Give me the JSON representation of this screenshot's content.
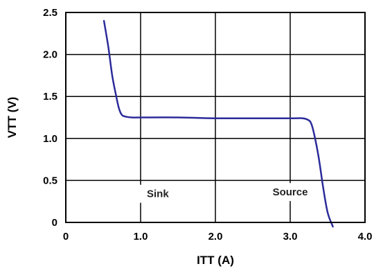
{
  "chart_data": {
    "type": "line",
    "title": "",
    "xlabel": "ITT (A)",
    "ylabel": "VTT (V)",
    "xlim": [
      0,
      4.0
    ],
    "ylim": [
      0,
      2.5
    ],
    "x_ticks": [
      0,
      1.0,
      2.0,
      3.0,
      4.0
    ],
    "x_tick_labels": [
      "0",
      "1.0",
      "2.0",
      "3.0",
      "4.0"
    ],
    "y_ticks": [
      0,
      0.5,
      1.0,
      1.5,
      2.0,
      2.5
    ],
    "y_tick_labels": [
      "0",
      "0.5",
      "1.0",
      "1.5",
      "2.0",
      "2.5"
    ],
    "grid": true,
    "legend": "none",
    "line_color": "#2b2b9a",
    "series": [
      {
        "x": [
          0.51,
          0.57,
          0.62,
          0.67,
          0.71,
          0.75,
          0.8,
          0.88,
          1.0,
          1.5,
          2.0,
          2.5,
          3.0,
          3.17,
          3.24,
          3.28,
          3.32,
          3.38,
          3.44,
          3.5,
          3.57
        ],
        "y": [
          2.4,
          2.08,
          1.75,
          1.52,
          1.36,
          1.28,
          1.26,
          1.25,
          1.25,
          1.25,
          1.24,
          1.24,
          1.24,
          1.24,
          1.22,
          1.18,
          1.05,
          0.78,
          0.42,
          0.12,
          -0.05
        ]
      }
    ],
    "annotations": [
      {
        "text": "Sink",
        "x": 1.23,
        "y": 0.3
      },
      {
        "text": "Source",
        "x": 3.0,
        "y": 0.32
      }
    ]
  }
}
